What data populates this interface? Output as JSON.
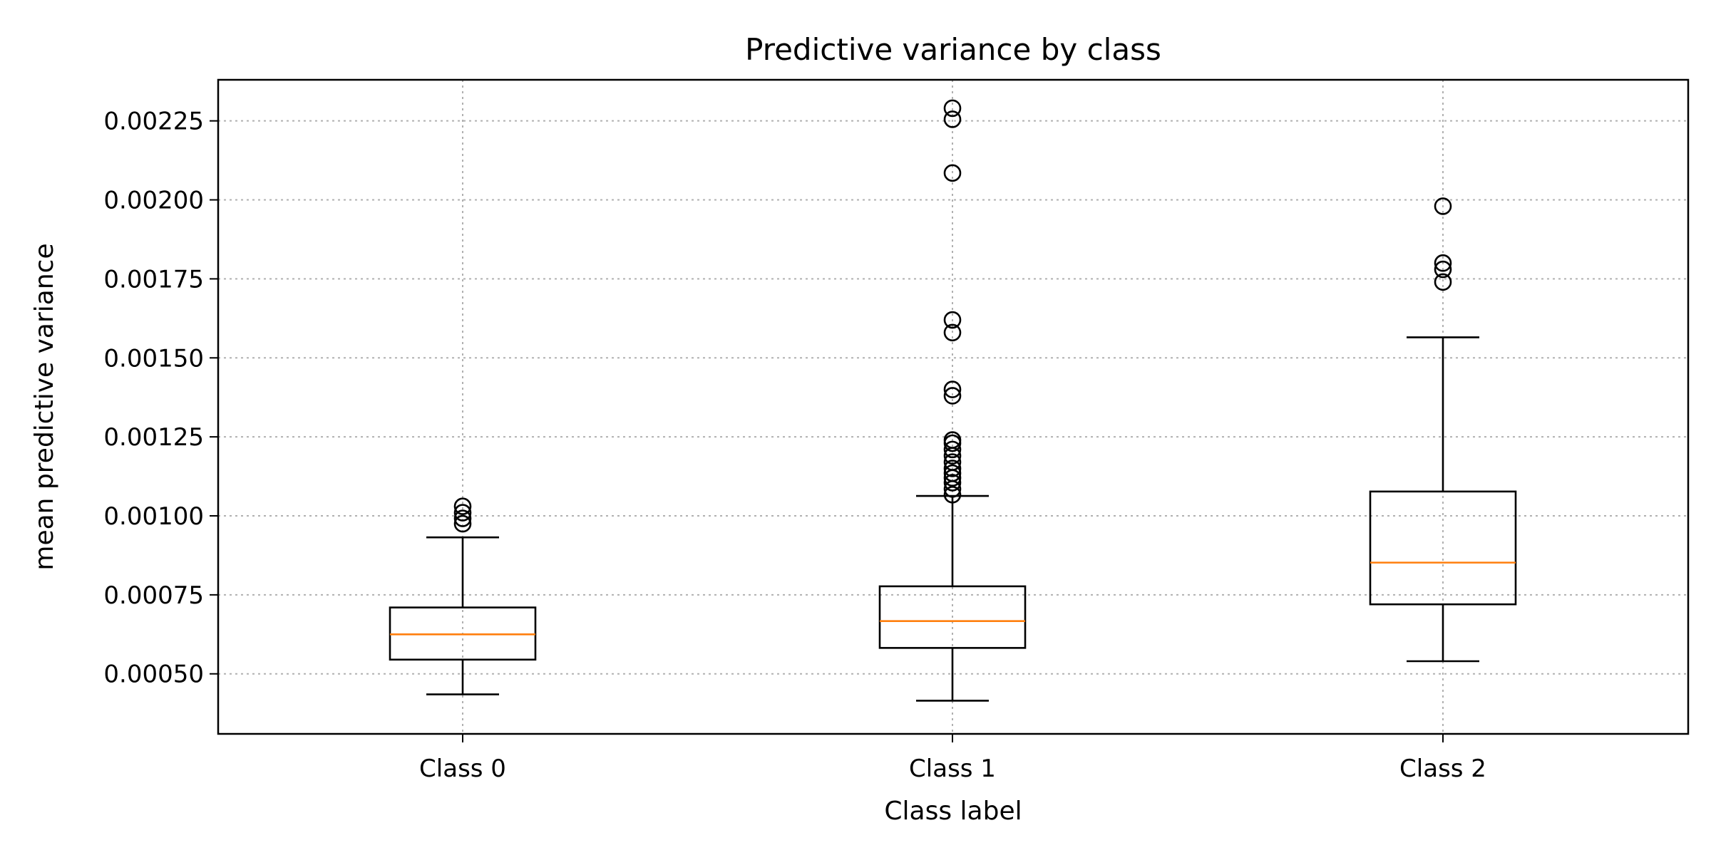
{
  "chart_data": {
    "type": "boxplot",
    "title": "Predictive variance by class",
    "xlabel": "Class label",
    "ylabel": "mean predictive variance",
    "categories": [
      "Class 0",
      "Class 1",
      "Class 2"
    ],
    "ylim": [
      0.00031,
      0.00238
    ],
    "yticks": [
      0.0005,
      0.00075,
      0.001,
      0.00125,
      0.0015,
      0.00175,
      0.002,
      0.00225
    ],
    "ytick_labels": [
      "0.00050",
      "0.00075",
      "0.00100",
      "0.00125",
      "0.00150",
      "0.00175",
      "0.00200",
      "0.00225"
    ],
    "grid": true,
    "median_color": "#ff7f0e",
    "box_color": "#000000",
    "grid_color": "#b0b0b0",
    "boxes": [
      {
        "label": "Class 0",
        "whisker_low": 0.000435,
        "q1": 0.000545,
        "median": 0.000625,
        "q3": 0.00071,
        "whisker_high": 0.000932,
        "fliers": [
          0.000975,
          0.000992,
          0.00101,
          0.00103
        ]
      },
      {
        "label": "Class 1",
        "whisker_low": 0.000415,
        "q1": 0.000582,
        "median": 0.000667,
        "q3": 0.000777,
        "whisker_high": 0.001063,
        "fliers": [
          0.001067,
          0.001085,
          0.001105,
          0.00112,
          0.001135,
          0.00115,
          0.00117,
          0.00119,
          0.00121,
          0.00123,
          0.00124,
          0.00138,
          0.0014,
          0.00158,
          0.00162,
          0.002085,
          0.002255,
          0.00229
        ]
      },
      {
        "label": "Class 2",
        "whisker_low": 0.00054,
        "q1": 0.00072,
        "median": 0.000852,
        "q3": 0.001077,
        "whisker_high": 0.001565,
        "fliers": [
          0.00174,
          0.00178,
          0.0018,
          0.00198
        ]
      }
    ]
  }
}
